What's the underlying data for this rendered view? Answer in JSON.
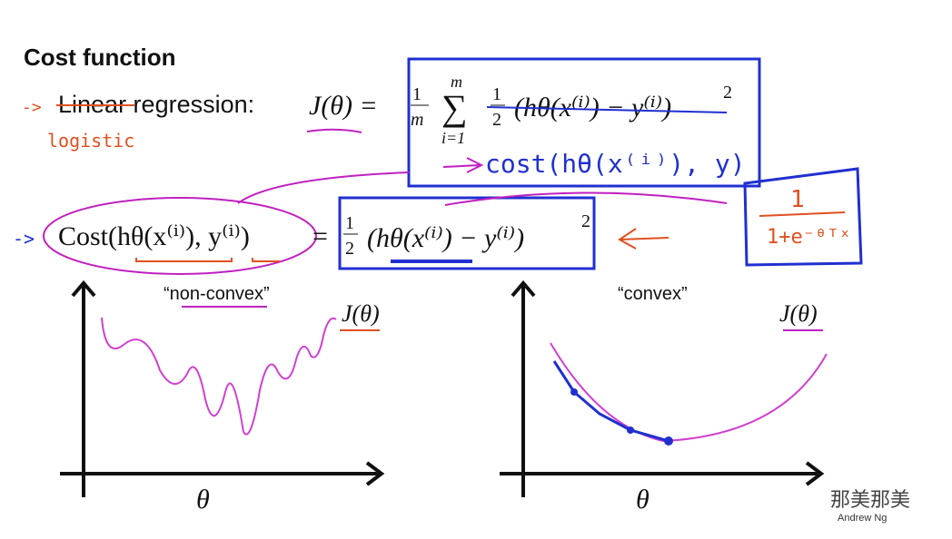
{
  "slide": {
    "title": "Cost function",
    "row1_label": "Linear regression:",
    "row1_formula": {
      "lhs": "J(θ) =",
      "frac_num": "1",
      "frac_den": "m",
      "sum_top": "m",
      "sum_sym": "∑",
      "sum_bottom": "i=1",
      "half_num": "1",
      "half_den": "2",
      "body": "(hθ(x⁽ⁱ⁾) − y⁽ⁱ⁾)",
      "power": "2"
    },
    "annotation_logistic": "logistic",
    "annotation_cost": "cost(hθ(x⁽ⁱ⁾), y)",
    "annotation_sigmoid_num": "1",
    "annotation_sigmoid_den": "1+e⁻ᶿᵀˣ",
    "row2_formula": {
      "lhs": "Cost(hθ(x⁽ⁱ⁾), y⁽ⁱ⁾)",
      "eq": "=",
      "half_num": "1",
      "half_den": "2",
      "body": "(hθ(x⁽ⁱ⁾) − y⁽ⁱ⁾)",
      "power": "2"
    },
    "left_plot": {
      "label": "“non-convex”",
      "curve_label": "J(θ)",
      "x_label": "θ"
    },
    "right_plot": {
      "label": "“convex”",
      "curve_label": "J(θ)",
      "x_label": "θ"
    },
    "credit": "Andrew Ng",
    "watermark": "那美那美"
  }
}
